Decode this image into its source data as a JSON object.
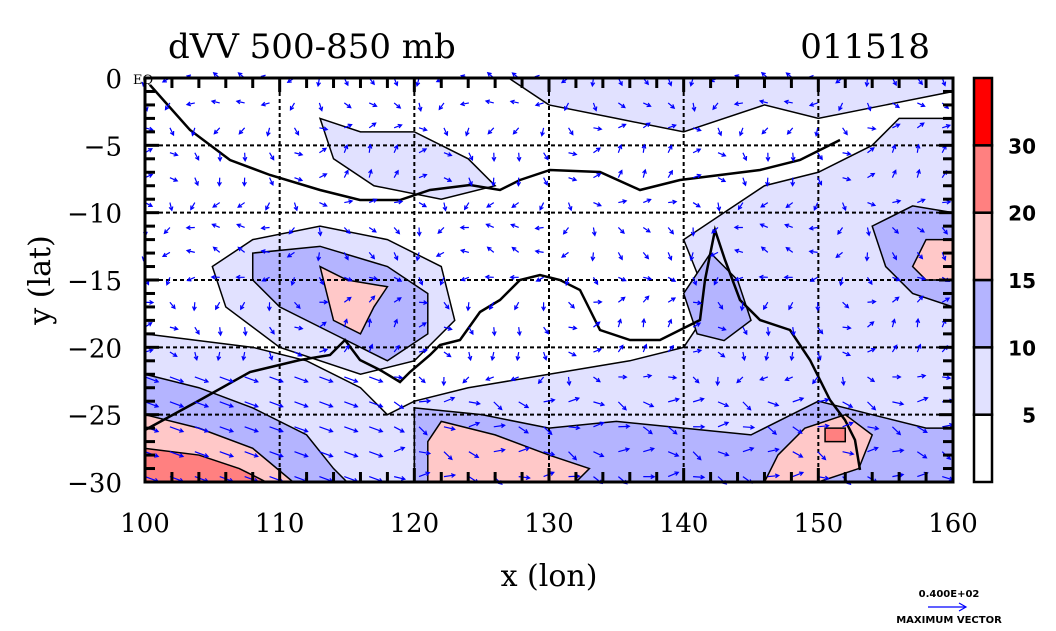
{
  "chart_data": {
    "type": "heatmap",
    "title": "dVV 500-850 mb",
    "time_label": "011518",
    "xlabel": "x (lon)",
    "ylabel": "y (lat)",
    "xlim": [
      100,
      160
    ],
    "ylim": [
      -30,
      0
    ],
    "xticks": [
      "100",
      "110",
      "120",
      "130",
      "140",
      "150",
      "160"
    ],
    "xtick_values": [
      100,
      110,
      120,
      130,
      140,
      150,
      160
    ],
    "yticks": [
      "0",
      "−5",
      "−10",
      "−15",
      "−20",
      "−25",
      "−30"
    ],
    "ytick_values": [
      0,
      -5,
      -10,
      -15,
      -20,
      -25,
      -30
    ],
    "eq_label": "EQ",
    "grid": true,
    "colorbar": {
      "levels": [
        "5",
        "10",
        "15",
        "20",
        "30"
      ],
      "level_values": [
        5,
        10,
        15,
        20,
        30
      ],
      "colors": [
        "#ffffff",
        "#e1e1ff",
        "#b4b4ff",
        "#ffc8c8",
        "#ff8080",
        "#ff0000"
      ]
    },
    "vector_legend": {
      "value": "0.400E+02",
      "label": "MAXIMUM VECTOR",
      "color": "#0000ff"
    },
    "shaded_regions": [
      {
        "level": 1,
        "poly": [
          [
            100,
            -19
          ],
          [
            104,
            -19.5
          ],
          [
            108,
            -20
          ],
          [
            112,
            -21
          ],
          [
            116,
            -23
          ],
          [
            118,
            -25
          ],
          [
            120,
            -24
          ],
          [
            124,
            -23
          ],
          [
            130,
            -22
          ],
          [
            136,
            -21
          ],
          [
            140,
            -20
          ],
          [
            142,
            -17
          ],
          [
            140,
            -12
          ],
          [
            143,
            -10
          ],
          [
            146,
            -8
          ],
          [
            150,
            -7
          ],
          [
            154,
            -5
          ],
          [
            156,
            -3
          ],
          [
            160,
            -3
          ],
          [
            160,
            -30
          ],
          [
            100,
            -30
          ]
        ]
      },
      {
        "level": 1,
        "poly": [
          [
            127,
            0
          ],
          [
            130,
            -2
          ],
          [
            135,
            -3
          ],
          [
            140,
            -4
          ],
          [
            146,
            -2
          ],
          [
            150,
            -3
          ],
          [
            155,
            -2
          ],
          [
            160,
            -1
          ],
          [
            160,
            0
          ]
        ]
      },
      {
        "level": 1,
        "poly": [
          [
            105,
            -14
          ],
          [
            108,
            -12
          ],
          [
            113,
            -11
          ],
          [
            118,
            -12
          ],
          [
            122,
            -14
          ],
          [
            123,
            -18
          ],
          [
            120,
            -21
          ],
          [
            116,
            -22
          ],
          [
            110,
            -20
          ],
          [
            106,
            -17
          ]
        ]
      },
      {
        "level": 1,
        "poly": [
          [
            113,
            -3
          ],
          [
            116,
            -4
          ],
          [
            120,
            -4
          ],
          [
            124,
            -6
          ],
          [
            126,
            -8
          ],
          [
            122,
            -9
          ],
          [
            117,
            -8
          ],
          [
            114,
            -6
          ]
        ]
      },
      {
        "level": 2,
        "poly": [
          [
            100,
            -22
          ],
          [
            104,
            -23
          ],
          [
            108,
            -24.5
          ],
          [
            112,
            -26.5
          ],
          [
            114,
            -29
          ],
          [
            115,
            -30
          ],
          [
            100,
            -30
          ]
        ]
      },
      {
        "level": 2,
        "poly": [
          [
            108,
            -13
          ],
          [
            113,
            -12.5
          ],
          [
            118,
            -14
          ],
          [
            121,
            -16
          ],
          [
            121,
            -19
          ],
          [
            118,
            -21
          ],
          [
            114,
            -19
          ],
          [
            110,
            -17
          ],
          [
            108,
            -15
          ]
        ]
      },
      {
        "level": 2,
        "poly": [
          [
            120,
            -24.5
          ],
          [
            125,
            -25
          ],
          [
            130,
            -26
          ],
          [
            135,
            -25.5
          ],
          [
            140,
            -26
          ],
          [
            145,
            -26.5
          ],
          [
            150,
            -24
          ],
          [
            154,
            -25
          ],
          [
            158,
            -26
          ],
          [
            160,
            -26
          ],
          [
            160,
            -30
          ],
          [
            120,
            -30
          ]
        ]
      },
      {
        "level": 2,
        "poly": [
          [
            140,
            -16
          ],
          [
            142,
            -13
          ],
          [
            144,
            -15
          ],
          [
            145,
            -18
          ],
          [
            143,
            -19.5
          ],
          [
            141,
            -19
          ]
        ]
      },
      {
        "level": 2,
        "poly": [
          [
            154,
            -11
          ],
          [
            157,
            -9.5
          ],
          [
            160,
            -10
          ],
          [
            160,
            -17
          ],
          [
            157,
            -16
          ],
          [
            155,
            -14
          ]
        ]
      },
      {
        "level": 3,
        "poly": [
          [
            100,
            -25
          ],
          [
            104,
            -26
          ],
          [
            108,
            -27.5
          ],
          [
            111,
            -30
          ],
          [
            100,
            -30
          ]
        ]
      },
      {
        "level": 3,
        "poly": [
          [
            122,
            -25.5
          ],
          [
            126,
            -26.5
          ],
          [
            130,
            -28
          ],
          [
            133,
            -29
          ],
          [
            132,
            -30
          ],
          [
            121,
            -30
          ],
          [
            121,
            -27
          ]
        ]
      },
      {
        "level": 3,
        "poly": [
          [
            147,
            -28
          ],
          [
            149,
            -26
          ],
          [
            152,
            -25
          ],
          [
            154,
            -26.5
          ],
          [
            153,
            -29
          ],
          [
            150,
            -30
          ],
          [
            146,
            -30
          ]
        ]
      },
      {
        "level": 3,
        "poly": [
          [
            113,
            -14
          ],
          [
            115,
            -15
          ],
          [
            118,
            -15.5
          ],
          [
            117,
            -17
          ],
          [
            116,
            -19
          ],
          [
            114,
            -18
          ]
        ]
      },
      {
        "level": 3,
        "poly": [
          [
            157,
            -14
          ],
          [
            158,
            -12
          ],
          [
            160,
            -12
          ],
          [
            160,
            -15
          ],
          [
            158,
            -15
          ]
        ]
      },
      {
        "level": 4,
        "poly": [
          [
            100,
            -27.5
          ],
          [
            104,
            -28
          ],
          [
            107,
            -29
          ],
          [
            109,
            -30
          ],
          [
            100,
            -30
          ]
        ]
      },
      {
        "level": 4,
        "poly": [
          [
            150.5,
            -26
          ],
          [
            152,
            -26
          ],
          [
            152,
            -27
          ],
          [
            150.5,
            -27
          ]
        ]
      }
    ]
  }
}
